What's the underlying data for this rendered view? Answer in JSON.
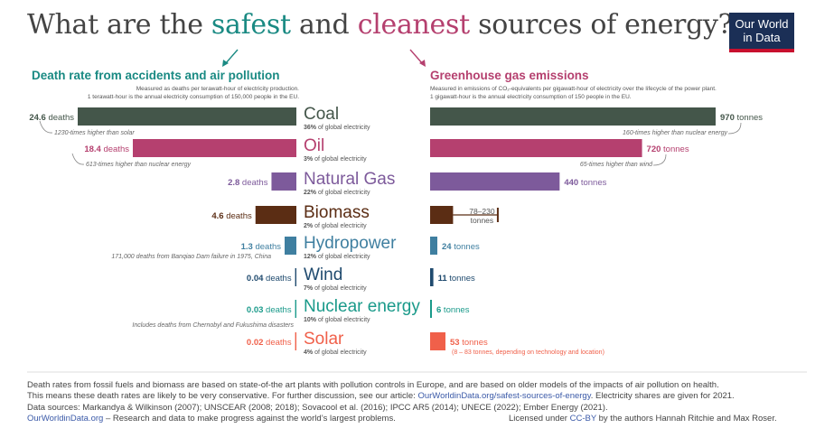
{
  "title": {
    "part1": "What are the ",
    "safest": "safest",
    "part2": " and ",
    "cleanest": "cleanest",
    "part3": " sources of energy?"
  },
  "logo": {
    "line1": "Our World",
    "line2": "in Data"
  },
  "left_panel": {
    "header": "Death rate from accidents and air pollution",
    "sub1": "Measured as deaths per terawatt-hour of electricity production.",
    "sub2": "1 terawatt-hour is the annual electricity consumption of 150,000 people in the EU."
  },
  "right_panel": {
    "header": "Greenhouse gas emissions",
    "sub1": "Measured in emissions of CO₂-equivalents per gigawatt-hour of electricity over the lifecycle of the power plant.",
    "sub2": "1 gigawatt-hour is the annual electricity consumption of 150 people in the EU."
  },
  "chart_data": [
    {
      "type": "bar",
      "title": "Death rate from accidents and air pollution",
      "categories": [
        "Coal",
        "Oil",
        "Natural Gas",
        "Biomass",
        "Hydropower",
        "Wind",
        "Nuclear energy",
        "Solar"
      ],
      "values": [
        24.6,
        18.4,
        2.8,
        4.6,
        1.3,
        0.04,
        0.03,
        0.02
      ],
      "labels": [
        "24.6 deaths",
        "18.4 deaths",
        "2.8 deaths",
        "4.6 deaths",
        "1.3 deaths",
        "0.04 deaths",
        "0.03 deaths",
        "0.02 deaths"
      ],
      "annotations": [
        "1230-times higher than solar",
        "613-times higher than nuclear energy",
        "",
        "",
        "171,000 deaths from Banqiao Dam failure in 1975, China",
        "",
        "Includes deaths from Chernobyl and Fukushima disasters",
        ""
      ]
    },
    {
      "type": "bar",
      "title": "Greenhouse gas emissions",
      "categories": [
        "Coal",
        "Oil",
        "Natural Gas",
        "Biomass",
        "Hydropower",
        "Wind",
        "Nuclear energy",
        "Solar"
      ],
      "values": [
        970,
        720,
        440,
        230,
        24,
        11,
        6,
        53
      ],
      "range_biomass": [
        78,
        230
      ],
      "labels": [
        "970 tonnes",
        "720 tonnes",
        "440 tonnes",
        "78–230 tonnes",
        "24 tonnes",
        "11 tonnes",
        "6 tonnes",
        "53 tonnes"
      ],
      "annotations": [
        "160-times higher than nuclear energy",
        "65-times higher than wind",
        "",
        "",
        "",
        "",
        "",
        "(8 – 83 tonnes, depending on technology and location)"
      ]
    }
  ],
  "sources": [
    {
      "name": "Coal",
      "share": "36%",
      "color": "#44564a"
    },
    {
      "name": "Oil",
      "share": "3%",
      "color": "#b5406f"
    },
    {
      "name": "Natural Gas",
      "share": "22%",
      "color": "#7d5a9b"
    },
    {
      "name": "Biomass",
      "share": "2%",
      "color": "#5b2d14"
    },
    {
      "name": "Hydropower",
      "share": "12%",
      "color": "#3f7fa0"
    },
    {
      "name": "Wind",
      "share": "7%",
      "color": "#1f4a6e"
    },
    {
      "name": "Nuclear energy",
      "share": "10%",
      "color": "#1a9a8a"
    },
    {
      "name": "Solar",
      "share": "4%",
      "color": "#f0604a"
    }
  ],
  "share_suffix": " of global electricity",
  "footer": {
    "line1": "Death rates from fossil fuels and biomass are based on state-of-the art plants with pollution controls in Europe, and are based on older models of the impacts of air pollution on health.",
    "line2a": "This means these death rates are likely to be very conservative. For further discussion, see our article: ",
    "line2link": "OurWorldinData.org/safest-sources-of-energy",
    "line2b": ". Electricity shares are given for 2021.",
    "line3": "Data sources: Markandya & Wilkinson (2007); UNSCEAR (2008; 2018); Sovacool et al. (2016); IPCC AR5 (2014); UNECE (2022); Ember Energy (2021).",
    "line4link": "OurWorldinData.org",
    "line4b": " – Research and data to make progress against the world’s largest problems.",
    "license_a": "Licensed under ",
    "license_link": "CC-BY",
    "license_b": " by the authors Hannah Ritchie and Max Roser."
  }
}
